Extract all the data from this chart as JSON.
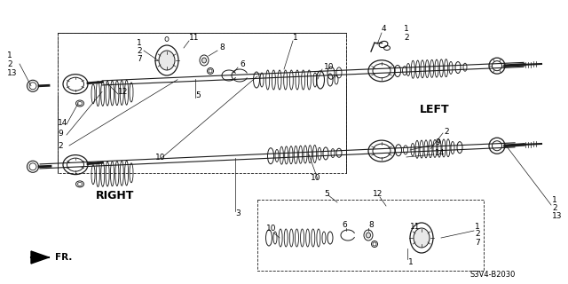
{
  "background_color": "#ffffff",
  "diagram_code": "S3V4-B2030",
  "left_label": "LEFT",
  "right_label": "RIGHT",
  "fr_label": "FR.",
  "line_color": "#1a1a1a",
  "text_color": "#000000",
  "font_size": 6.5,
  "bold_font_size": 9
}
